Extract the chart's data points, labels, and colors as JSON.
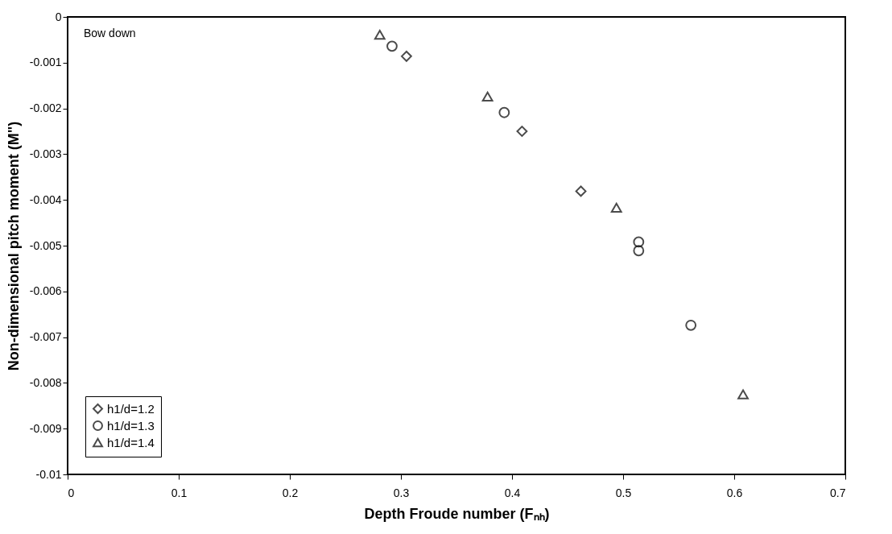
{
  "chart_data": {
    "type": "scatter",
    "xlabel": "Depth Froude number (Fₙₕ)",
    "ylabel": "Non-dimensional pitch moment (M\")",
    "annotations": [
      "Bow down"
    ],
    "xlim": [
      0,
      0.7
    ],
    "xticks": [
      0,
      0.1,
      0.2,
      0.3,
      0.4,
      0.5,
      0.6,
      0.7
    ],
    "ylim": [
      -0.01,
      0
    ],
    "yticks": [
      -0.01,
      -0.009,
      -0.008,
      -0.007,
      -0.006,
      -0.005,
      -0.004,
      -0.003,
      -0.002,
      -0.001,
      0
    ],
    "grid": false,
    "legend": "bottom left",
    "series": [
      {
        "name": "h1/d=1.2",
        "color": "#000000",
        "marker": "diamond",
        "x": [
          0.305,
          0.409,
          0.462
        ],
        "values": [
          -0.00086,
          -0.0025,
          -0.00381
        ]
      },
      {
        "name": "h1/d=1.3",
        "color": "#000000",
        "marker": "circle",
        "x": [
          0.292,
          0.393,
          0.514,
          0.514,
          0.561
        ],
        "values": [
          -0.00064,
          -0.00209,
          -0.00492,
          -0.00511,
          -0.00674
        ]
      },
      {
        "name": "h1/d=1.4",
        "color": "#000000",
        "marker": "triangle",
        "x": [
          0.281,
          0.378,
          0.494,
          0.608
        ],
        "values": [
          -0.00039,
          -0.00174,
          -0.00417,
          -0.00825
        ]
      }
    ]
  }
}
